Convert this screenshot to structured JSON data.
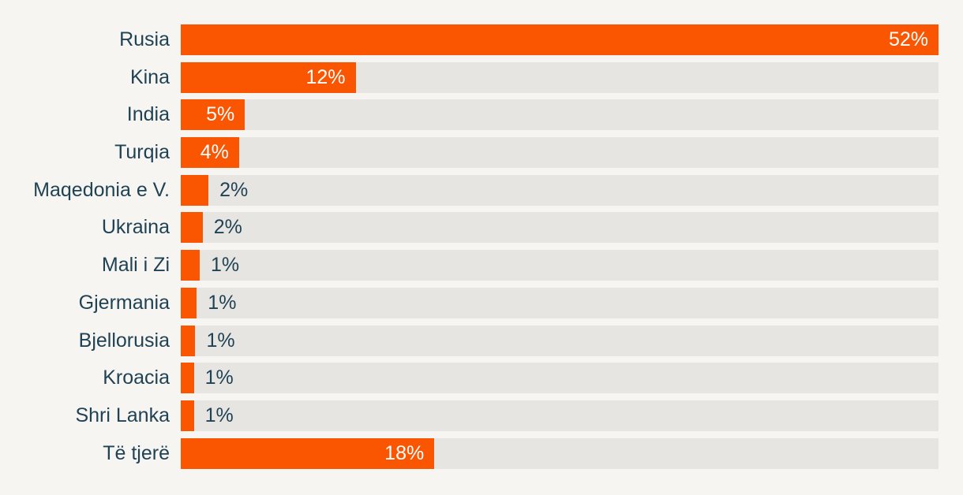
{
  "chart_data": {
    "type": "bar",
    "orientation": "horizontal",
    "title": "",
    "unit": "%",
    "categories": [
      "Rusia",
      "Kina",
      "India",
      "Turqia",
      "Maqedonia e V.",
      "Ukraina",
      "Mali i Zi",
      "Gjermania",
      "Bjellorusia",
      "Kroacia",
      "Shri Lanka",
      "Të tjerë"
    ],
    "values": [
      52,
      12,
      5,
      4,
      2,
      2,
      1,
      1,
      1,
      1,
      1,
      18
    ],
    "value_labels": [
      "52%",
      "12%",
      "5%",
      "4%",
      "2%",
      "2%",
      "1%",
      "1%",
      "1%",
      "1%",
      "1%",
      "18%"
    ],
    "values_exact": [
      52,
      12,
      4.4,
      4.0,
      1.9,
      1.5,
      1.3,
      1.1,
      1.0,
      0.9,
      0.9,
      17.4
    ],
    "xlim": [
      0,
      52
    ],
    "grid": false,
    "legend": "none",
    "axis_labels": "none",
    "label_inside": [
      true,
      true,
      true,
      true,
      false,
      false,
      false,
      false,
      false,
      false,
      false,
      true
    ]
  },
  "colors": {
    "background": "#f7f5f2",
    "bar": "#fa5500",
    "bar_track": "#e7e5e2",
    "category_text": "#1f4254",
    "value_text_inside": "#ffffff",
    "value_text_outside": "#1f4254"
  }
}
